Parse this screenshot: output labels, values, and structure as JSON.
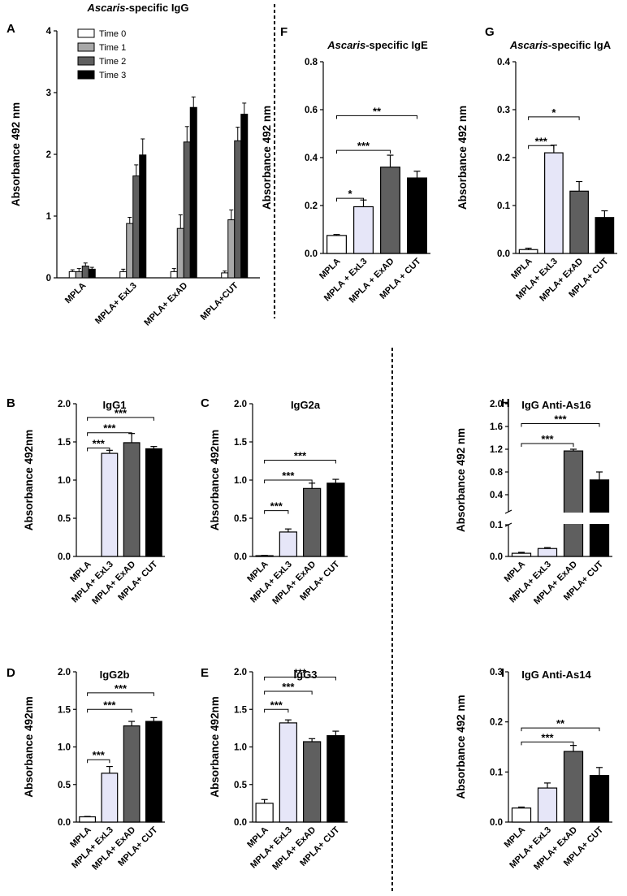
{
  "figure": {
    "divider_style": "dashed"
  },
  "colors": {
    "white": "#ffffff",
    "lavender": "#e6e6f8",
    "gray_light": "#a8a8a8",
    "gray_dark": "#5f5f5f",
    "black": "#000000"
  },
  "chart_data": [
    {
      "id": "A",
      "letter": "A",
      "type": "bar",
      "title_italic": "Ascaris",
      "title_rest": "-specific IgG",
      "ylabel": "Absorbance 492 nm",
      "ylim": [
        0,
        4
      ],
      "yticks": [
        "0",
        "1",
        "2",
        "3",
        "4"
      ],
      "categories": [
        "MPLA",
        "MPLA+ ExL3",
        "MPLA+ ExAD",
        "MPLA+CUT"
      ],
      "legend_position": "top-left",
      "series": [
        {
          "name": "Time 0",
          "color": "#ffffff",
          "values": [
            0.1,
            0.1,
            0.1,
            0.08
          ],
          "errors": [
            0.03,
            0.04,
            0.05,
            0.03
          ]
        },
        {
          "name": "Time 1",
          "color": "#a8a8a8",
          "values": [
            0.1,
            0.88,
            0.8,
            0.94
          ],
          "errors": [
            0.05,
            0.1,
            0.22,
            0.16
          ]
        },
        {
          "name": "Time 2",
          "color": "#5f5f5f",
          "values": [
            0.19,
            1.65,
            2.2,
            2.22
          ],
          "errors": [
            0.05,
            0.18,
            0.25,
            0.22
          ]
        },
        {
          "name": "Time 3",
          "color": "#000000",
          "values": [
            0.14,
            1.99,
            2.76,
            2.65
          ],
          "errors": [
            0.03,
            0.26,
            0.17,
            0.18
          ]
        }
      ],
      "significance": []
    },
    {
      "id": "F",
      "letter": "F",
      "type": "bar",
      "title_italic": "Ascaris",
      "title_rest": "-specific IgE",
      "ylabel": "Absorbance 492 nm",
      "ylim": [
        0,
        0.8
      ],
      "yticks": [
        "0.0",
        "0.2",
        "0.4",
        "0.6",
        "0.8"
      ],
      "categories": [
        "MPLA",
        "MPLA + ExL3",
        "MPLA + ExAD",
        "MPLA + CUT"
      ],
      "values": [
        0.075,
        0.195,
        0.36,
        0.315
      ],
      "errors": [
        0.004,
        0.028,
        0.05,
        0.028
      ],
      "significance": [
        {
          "from": 0,
          "to": 1,
          "label": "*",
          "y": 0.23
        },
        {
          "from": 0,
          "to": 2,
          "label": "***",
          "y": 0.43
        },
        {
          "from": 0,
          "to": 3,
          "label": "**",
          "y": 0.575
        }
      ]
    },
    {
      "id": "G",
      "letter": "G",
      "type": "bar",
      "title_italic": "Ascaris",
      "title_rest": "-specific IgA",
      "ylabel": "Absorbance 492 nm",
      "ylim": [
        0,
        0.4
      ],
      "yticks": [
        "0.0",
        "0.1",
        "0.2",
        "0.3",
        "0.4"
      ],
      "categories": [
        "MPLA",
        "MPLA+ ExL3",
        "MPLA+ ExAD",
        "MPLA+ CUT"
      ],
      "values": [
        0.008,
        0.21,
        0.13,
        0.075
      ],
      "errors": [
        0.003,
        0.016,
        0.02,
        0.014
      ],
      "significance": [
        {
          "from": 0,
          "to": 1,
          "label": "***",
          "y": 0.225
        },
        {
          "from": 0,
          "to": 2,
          "label": "*",
          "y": 0.285
        }
      ]
    },
    {
      "id": "B",
      "letter": "B",
      "type": "bar",
      "title": "IgG1",
      "ylabel": "Absorbance 492nm",
      "ylim": [
        0,
        2
      ],
      "yticks": [
        "0.0",
        "0.5",
        "1.0",
        "1.5",
        "2.0"
      ],
      "categories": [
        "MPLA",
        "MPLA+ ExL3",
        "MPLA+ ExAD",
        "MPLA+ CUT"
      ],
      "values": [
        0.0,
        1.35,
        1.49,
        1.41
      ],
      "errors": [
        0.0,
        0.04,
        0.12,
        0.03
      ],
      "significance": [
        {
          "from": 0,
          "to": 1,
          "label": "***",
          "y": 1.42
        },
        {
          "from": 0,
          "to": 2,
          "label": "***",
          "y": 1.62
        },
        {
          "from": 0,
          "to": 3,
          "label": "***",
          "y": 1.82
        }
      ]
    },
    {
      "id": "C",
      "letter": "C",
      "type": "bar",
      "title": "IgG2a",
      "ylabel": "Absorbance 492nm",
      "ylim": [
        0,
        2
      ],
      "yticks": [
        "0.0",
        "0.5",
        "1.0",
        "1.5",
        "2.0"
      ],
      "categories": [
        "MPLA",
        "MPLA+ ExL3",
        "MPLA+ ExAD",
        "MPLA+ CUT"
      ],
      "values": [
        0.01,
        0.32,
        0.89,
        0.96
      ],
      "errors": [
        0.005,
        0.04,
        0.07,
        0.05
      ],
      "significance": [
        {
          "from": 0,
          "to": 1,
          "label": "***",
          "y": 0.6
        },
        {
          "from": 0,
          "to": 2,
          "label": "***",
          "y": 1.0
        },
        {
          "from": 0,
          "to": 3,
          "label": "***",
          "y": 1.26
        }
      ]
    },
    {
      "id": "H",
      "letter": "H",
      "type": "bar",
      "title": "IgG Anti-As16",
      "ylabel": "Absorbance 492 nm",
      "broken_axis": true,
      "lower_range": [
        0,
        0.1
      ],
      "upper_range": [
        0.1,
        2.0
      ],
      "yticks_lower": [
        "0.0",
        "0.1"
      ],
      "yticks_upper": [
        "0.4",
        "0.8",
        "1.2",
        "1.6",
        "2.0"
      ],
      "categories": [
        "MPLA",
        "MPLA+ ExL3",
        "MPLA+ ExAD",
        "MPLA+ CUT"
      ],
      "values": [
        0.01,
        0.025,
        1.17,
        0.66
      ],
      "errors": [
        0.003,
        0.003,
        0.03,
        0.14
      ],
      "significance": [
        {
          "from": 0,
          "to": 2,
          "label": "***",
          "y": 1.3
        },
        {
          "from": 0,
          "to": 3,
          "label": "***",
          "y": 1.65
        }
      ]
    },
    {
      "id": "D",
      "letter": "D",
      "type": "bar",
      "title": "IgG2b",
      "ylabel": "Absorbance 492nm",
      "ylim": [
        0,
        2
      ],
      "yticks": [
        "0.0",
        "0.5",
        "1.0",
        "1.5",
        "2.0"
      ],
      "categories": [
        "MPLA",
        "MPLA+ ExL3",
        "MPLA+ ExAD",
        "MPLA+ CUT"
      ],
      "values": [
        0.07,
        0.65,
        1.28,
        1.34
      ],
      "errors": [
        0.005,
        0.09,
        0.06,
        0.05
      ],
      "significance": [
        {
          "from": 0,
          "to": 1,
          "label": "***",
          "y": 0.83
        },
        {
          "from": 0,
          "to": 2,
          "label": "***",
          "y": 1.5
        },
        {
          "from": 0,
          "to": 3,
          "label": "***",
          "y": 1.72
        }
      ]
    },
    {
      "id": "E",
      "letter": "E",
      "type": "bar",
      "title": "IgG3",
      "ylabel": "Absorbance 492nm",
      "ylim": [
        0,
        2
      ],
      "yticks": [
        "0.0",
        "0.5",
        "1.0",
        "1.5",
        "2.0"
      ],
      "categories": [
        "MPLA",
        "MPLA+ ExL3",
        "MPLA+ ExAD",
        "MPLA+ CUT"
      ],
      "values": [
        0.25,
        1.32,
        1.07,
        1.15
      ],
      "errors": [
        0.05,
        0.04,
        0.04,
        0.06
      ],
      "significance": [
        {
          "from": 0,
          "to": 1,
          "label": "***",
          "y": 1.5
        },
        {
          "from": 0,
          "to": 2,
          "label": "***",
          "y": 1.74
        },
        {
          "from": 0,
          "to": 3,
          "label": "***",
          "y": 1.93
        }
      ]
    },
    {
      "id": "I",
      "letter": "I",
      "type": "bar",
      "title": "IgG Anti-As14",
      "ylabel": "Absorbance 492 nm",
      "ylim": [
        0,
        0.3
      ],
      "yticks": [
        "0.0",
        "0.1",
        "0.2",
        "0.3"
      ],
      "categories": [
        "MPLA",
        "MPLA+ ExL3",
        "MPLA+ ExAD",
        "MPLA+ CUT"
      ],
      "values": [
        0.028,
        0.068,
        0.141,
        0.093
      ],
      "errors": [
        0.002,
        0.01,
        0.012,
        0.016
      ],
      "significance": [
        {
          "from": 0,
          "to": 2,
          "label": "***",
          "y": 0.16
        },
        {
          "from": 0,
          "to": 3,
          "label": "**",
          "y": 0.188
        }
      ]
    }
  ]
}
